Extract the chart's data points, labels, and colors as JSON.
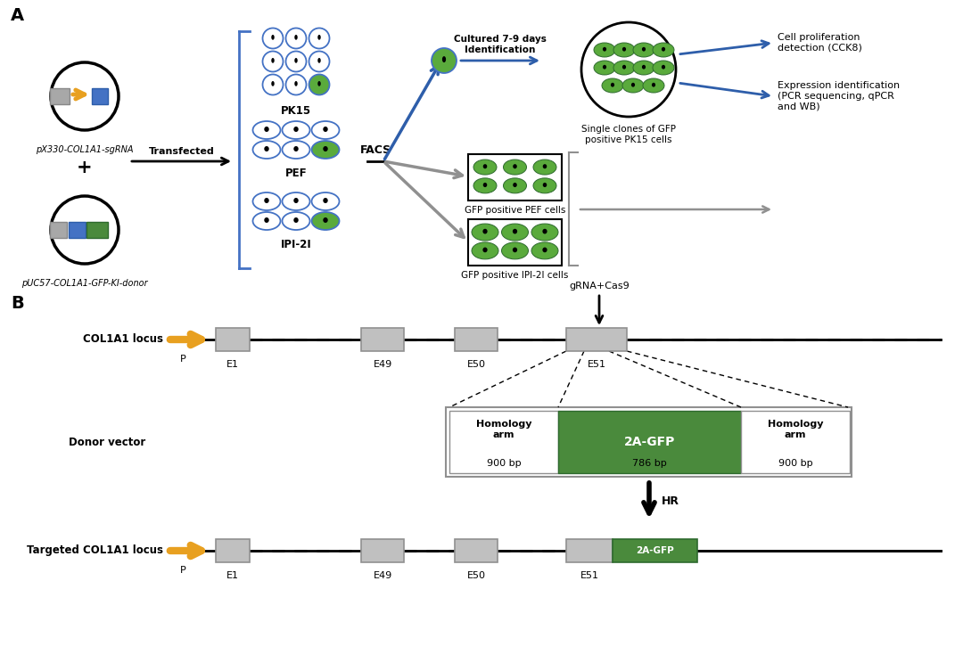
{
  "panel_A_label": "A",
  "panel_B_label": "B",
  "bg_color": "#ffffff",
  "plasmid1_label": "pX330-COL1A1-sgRNA",
  "plasmid2_label": "pUC57-COL1A1-GFP-KI-donor",
  "plus_sign": "+",
  "transfected_label": "Transfected",
  "facs_label": "FACS",
  "pk15_label": "PK15",
  "pef_label": "PEF",
  "ipi21_label": "IPI-2I",
  "cultured_label": "Cultured 7-9 days\nIdentification",
  "single_clones_label": "Single clones of GFP\npositive PK15 cells",
  "gfp_pef_label": "GFP positive PEF cells",
  "gfp_ipi_label": "GFP positive IPI-2I cells",
  "cell_prolif_label": "Cell proliferation\ndetection (CCK8)",
  "expression_id_label": "Expression identification\n(PCR sequencing, qPCR\nand WB)",
  "col1a1_locus_label": "COL1A1 locus",
  "grna_cas9_label": "gRNA+Cas9",
  "donor_vector_label": "Donor vector",
  "targeted_label": "Targeted COL1A1 locus",
  "hr_label": "HR",
  "homology_arm_label": "Homology\narm",
  "gfp_2a_label": "2A-GFP",
  "homology_arm2_label": "Homology\narm",
  "bp900_1": "900 bp",
  "bp786": "786 bp",
  "bp900_2": "900 bp",
  "arrow_orange": "#E8A020",
  "green_cell": "#5AAA3C",
  "gray_box": "#B8B8B8",
  "green_box": "#4A8A3C",
  "blue_arrow_color": "#2E5EAA",
  "gray_arrow_color": "#909090",
  "cell_border_blue": "#4472C4"
}
